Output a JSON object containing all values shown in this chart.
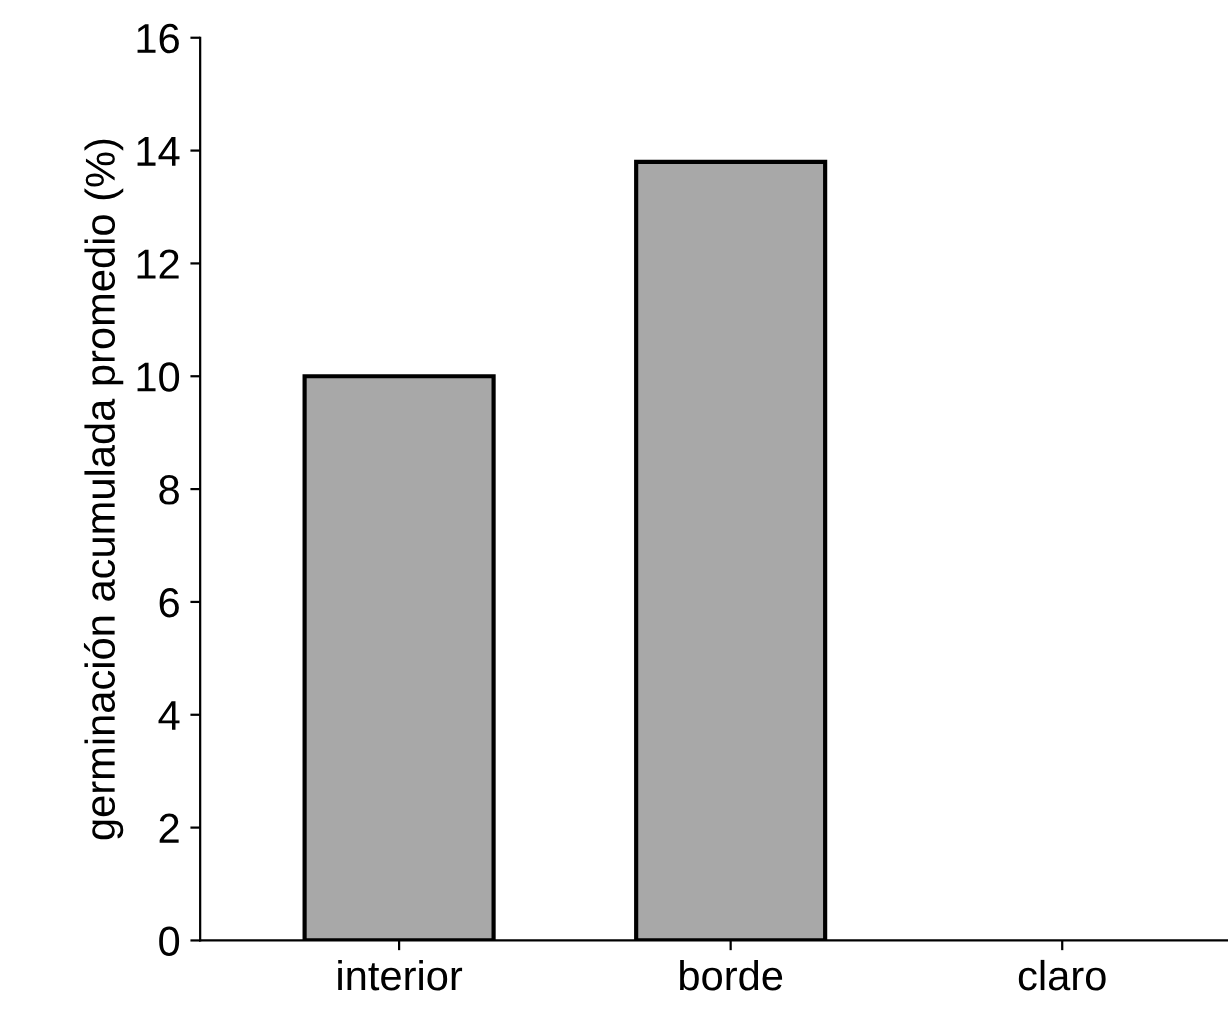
{
  "chart_data": {
    "type": "bar",
    "ylabel": "germinación acumulada promedio (%)",
    "categories": [
      "interior",
      "borde",
      "claro"
    ],
    "values": [
      10.0,
      13.8,
      0
    ],
    "color": "#a8a8a8",
    "ylim": [
      0,
      16
    ],
    "yticks": [
      0,
      2,
      4,
      6,
      8,
      10,
      12,
      14,
      16
    ],
    "grid": false,
    "legend": false
  }
}
